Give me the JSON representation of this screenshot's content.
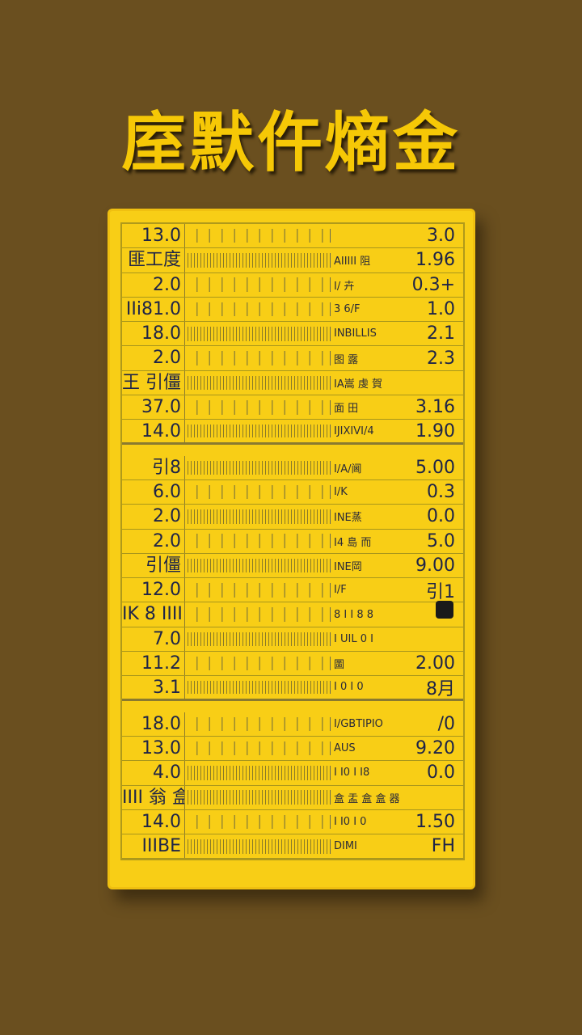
{
  "title": "庢默仵熵金",
  "colors": {
    "background": "#6a4f1f",
    "card": "#f8ce16",
    "title": "#f6c806",
    "text": "#1e2448"
  },
  "rows": [
    {
      "left": "13.0",
      "label": "",
      "value": "3.0",
      "pattern": "sparse"
    },
    {
      "left": "匪工度",
      "label": "AIIIII 阻",
      "value": "1.96",
      "pattern": "dense"
    },
    {
      "left": "2.0",
      "label": "I/ 卉",
      "value": "0.3+",
      "pattern": "sparse"
    },
    {
      "left": "IIi81.0",
      "label": "3 6/F",
      "value": "1.0",
      "pattern": "sparse"
    },
    {
      "left": "18.0",
      "label": "INBILLIS",
      "value": "2.1",
      "pattern": "dense"
    },
    {
      "left": "2.0",
      "label": "图 露",
      "value": "2.3",
      "pattern": "sparse"
    },
    {
      "left": "王 引僵",
      "label": "IA嵩 虔 賀",
      "value": "",
      "pattern": "dense"
    },
    {
      "left": "37.0",
      "label": "面 田",
      "value": "3.16",
      "pattern": "sparse"
    },
    {
      "left": "14.0",
      "label": "IJIXIVI/4",
      "value": "1.90",
      "pattern": "dense",
      "sep": true
    },
    {
      "left": "引8",
      "label": "I/A/阃",
      "value": "5.00",
      "pattern": "dense"
    },
    {
      "left": "6.0",
      "label": "I/K",
      "value": "0.3",
      "pattern": "sparse"
    },
    {
      "left": "2.0",
      "label": "INE蒸",
      "value": "0.0",
      "pattern": "dense"
    },
    {
      "left": "2.0",
      "label": "I4 島 而",
      "value": "5.0",
      "pattern": "sparse"
    },
    {
      "left": "引僵",
      "label": "INE岡",
      "value": "9.00",
      "pattern": "dense"
    },
    {
      "left": "12.0",
      "label": "I/F",
      "value": "引1",
      "pattern": "sparse"
    },
    {
      "left": "IK 8 IIII",
      "label": "8 I I 8 8",
      "value": "",
      "pattern": "sparse"
    },
    {
      "left": "7.0",
      "label": "I UIL 0 I",
      "value": "",
      "pattern": "dense"
    },
    {
      "left": "11.2",
      "label": "圖",
      "value": "2.00",
      "pattern": "sparse"
    },
    {
      "left": "3.1",
      "label": "I 0 I 0",
      "value": "8月",
      "pattern": "dense",
      "sep": true
    },
    {
      "left": "18.0",
      "label": "I/GBTIPIO",
      "value": "/0",
      "pattern": "sparse"
    },
    {
      "left": "13.0",
      "label": "AUS",
      "value": "9.20",
      "pattern": "sparse"
    },
    {
      "left": "4.0",
      "label": "I I0 I I8",
      "value": "0.0",
      "pattern": "dense"
    },
    {
      "left": "IIII 翁 盒",
      "label": "盒 盂 盒 盒 器",
      "value": "",
      "pattern": "dense"
    },
    {
      "left": "14.0",
      "label": "I I0 I 0",
      "value": "1.50",
      "pattern": "sparse"
    },
    {
      "left": "IIIBE",
      "label": "DIMI",
      "value": "FH",
      "pattern": "dense"
    }
  ]
}
